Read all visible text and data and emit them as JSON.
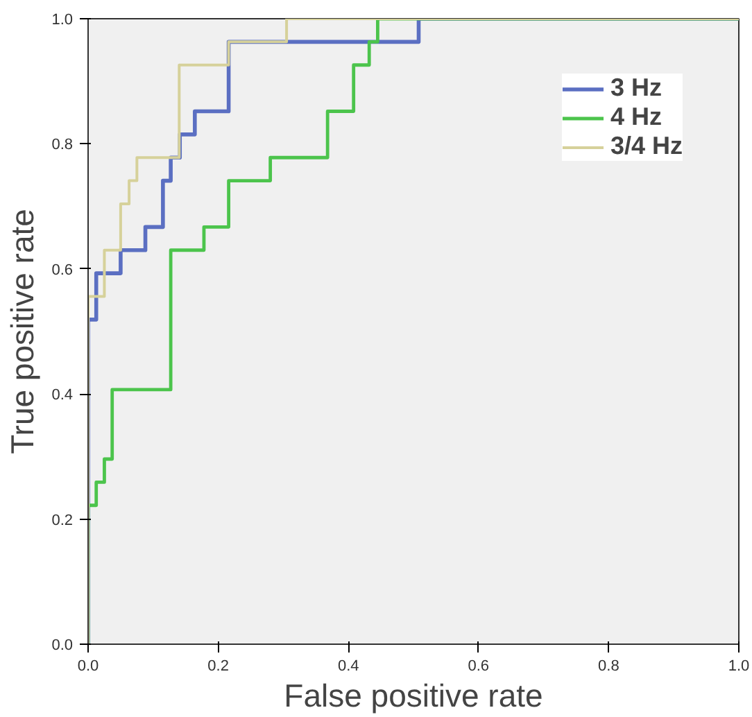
{
  "chart_data": {
    "type": "step",
    "xlabel": "False positive rate",
    "ylabel": "True positive rate",
    "xlim": [
      0,
      1
    ],
    "ylim": [
      0,
      1
    ],
    "xticks": [
      {
        "value": 0,
        "label": "0.0"
      },
      0.2,
      0.4,
      0.6,
      0.8,
      {
        "value": 1,
        "label": "1.0"
      }
    ],
    "yticks": [
      {
        "value": 0,
        "label": "0.0"
      },
      0.2,
      0.4,
      0.6,
      0.8,
      {
        "value": 1,
        "label": "1.0"
      }
    ],
    "grid": false,
    "legend": "top right",
    "series": [
      {
        "name": "3 Hz",
        "color": "#5b6fc2",
        "x": [
          0,
          0,
          0.0125,
          0.05,
          0.088,
          0.115,
          0.127,
          0.141,
          0.164,
          0.216,
          0.508,
          1
        ],
        "values": [
          0,
          0.519,
          0.593,
          0.63,
          0.667,
          0.741,
          0.778,
          0.815,
          0.852,
          0.963,
          1,
          1
        ]
      },
      {
        "name": "4 Hz",
        "color": "#4cc44c",
        "x": [
          0,
          0,
          0.0125,
          0.025,
          0.037,
          0.127,
          0.178,
          0.216,
          0.28,
          0.368,
          0.408,
          0.432,
          0.445,
          1
        ],
        "values": [
          0,
          0.222,
          0.259,
          0.296,
          0.407,
          0.63,
          0.667,
          0.741,
          0.778,
          0.852,
          0.926,
          0.963,
          1,
          1
        ]
      },
      {
        "name": "3/4 Hz",
        "color": "#d6d19a",
        "x": [
          0,
          0,
          0.025,
          0.05,
          0.063,
          0.075,
          0.14,
          0.216,
          0.305,
          1
        ],
        "values": [
          0,
          0.556,
          0.63,
          0.704,
          0.741,
          0.778,
          0.926,
          0.963,
          1,
          1
        ]
      }
    ]
  }
}
